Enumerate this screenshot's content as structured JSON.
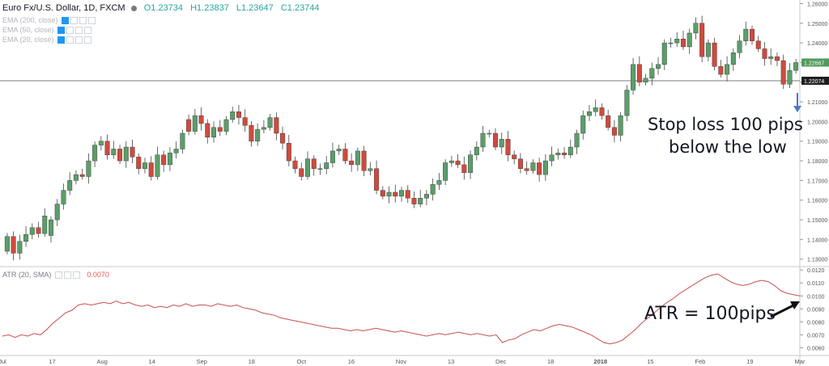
{
  "header": {
    "symbol": "Euro Fx/U.S. Dollar, 1D, FXCM",
    "open": "O1.23734",
    "high": "H1.23837",
    "low": "L1.23647",
    "close": "C1.23744"
  },
  "indicators": [
    "EMA (200, close)",
    "EMA (50, close)",
    "EMA (20, close)"
  ],
  "atr_header": {
    "label": "ATR (20, SMA)",
    "value": "0.0070"
  },
  "annotations": {
    "stop_line1": "Stop loss 100 pips",
    "stop_line2": "below the low",
    "atr_text": "ATR = 100pips"
  },
  "price_badges": {
    "last": "1.22667",
    "line": "1.22074"
  },
  "colors": {
    "up": "#5b9e6a",
    "down": "#d04a3c",
    "atr": "#c94f4f",
    "arrow": "#4a78c0",
    "hline": "#8a8a8a"
  },
  "chart_data": [
    {
      "type": "candlestick",
      "price_ticks": [
        "1.26000",
        "1.25000",
        "1.24000",
        "1.23000",
        "1.22000",
        "1.21000",
        "1.20000",
        "1.19000",
        "1.18000",
        "1.17000",
        "1.16000",
        "1.15000",
        "1.14000",
        "1.13000"
      ],
      "ylim": [
        1.127,
        1.261
      ],
      "horizontal_line": 1.22074,
      "x_labels": [
        "Jul",
        "17",
        "Aug",
        "14",
        "Sep",
        "18",
        "Oct",
        "16",
        "Nov",
        "13",
        "Dec",
        "18",
        "2018",
        "15",
        "Feb",
        "19",
        "Mar"
      ],
      "close": [
        1.1415,
        1.133,
        1.139,
        1.1425,
        1.146,
        1.143,
        1.152,
        1.15,
        1.158,
        1.165,
        1.17,
        1.173,
        1.172,
        1.18,
        1.188,
        1.19,
        1.183,
        1.186,
        1.18,
        1.187,
        1.182,
        1.176,
        1.179,
        1.172,
        1.183,
        1.178,
        1.184,
        1.186,
        1.194,
        1.195,
        1.203,
        1.199,
        1.192,
        1.197,
        1.195,
        1.201,
        1.205,
        1.202,
        1.198,
        1.19,
        1.196,
        1.197,
        1.202,
        1.194,
        1.189,
        1.18,
        1.176,
        1.172,
        1.181,
        1.176,
        1.176,
        1.179,
        1.185,
        1.186,
        1.18,
        1.178,
        1.185,
        1.175,
        1.176,
        1.165,
        1.162,
        1.164,
        1.162,
        1.165,
        1.161,
        1.158,
        1.161,
        1.163,
        1.168,
        1.17,
        1.179,
        1.18,
        1.178,
        1.174,
        1.183,
        1.187,
        1.194,
        1.194,
        1.187,
        1.191,
        1.183,
        1.181,
        1.176,
        1.175,
        1.179,
        1.173,
        1.18,
        1.183,
        1.184,
        1.183,
        1.187,
        1.194,
        1.203,
        1.205,
        1.207,
        1.203,
        1.197,
        1.193,
        1.203,
        1.216,
        1.229,
        1.22,
        1.222,
        1.227,
        1.229,
        1.24,
        1.24,
        1.242,
        1.238,
        1.245,
        1.25,
        1.233,
        1.24,
        1.228,
        1.224,
        1.229,
        1.235,
        1.241,
        1.247,
        1.241,
        1.237,
        1.232,
        1.233,
        1.231,
        1.219,
        1.226,
        1.23
      ],
      "open": [
        1.134,
        1.1415,
        1.133,
        1.139,
        1.1425,
        1.146,
        1.143,
        1.142,
        1.15,
        1.158,
        1.165,
        1.17,
        1.173,
        1.172,
        1.18,
        1.188,
        1.19,
        1.183,
        1.186,
        1.18,
        1.187,
        1.182,
        1.176,
        1.179,
        1.172,
        1.183,
        1.178,
        1.184,
        1.186,
        1.201,
        1.195,
        1.203,
        1.199,
        1.192,
        1.197,
        1.195,
        1.201,
        1.205,
        1.202,
        1.198,
        1.19,
        1.196,
        1.197,
        1.202,
        1.194,
        1.189,
        1.18,
        1.176,
        1.172,
        1.181,
        1.176,
        1.176,
        1.179,
        1.185,
        1.186,
        1.18,
        1.178,
        1.185,
        1.175,
        1.176,
        1.165,
        1.162,
        1.164,
        1.162,
        1.165,
        1.161,
        1.158,
        1.161,
        1.163,
        1.168,
        1.17,
        1.179,
        1.18,
        1.178,
        1.174,
        1.183,
        1.187,
        1.194,
        1.194,
        1.187,
        1.191,
        1.183,
        1.181,
        1.176,
        1.175,
        1.179,
        1.173,
        1.18,
        1.183,
        1.184,
        1.183,
        1.187,
        1.194,
        1.203,
        1.205,
        1.207,
        1.203,
        1.197,
        1.193,
        1.203,
        1.216,
        1.229,
        1.22,
        1.222,
        1.227,
        1.229,
        1.24,
        1.24,
        1.242,
        1.238,
        1.245,
        1.25,
        1.233,
        1.24,
        1.228,
        1.224,
        1.229,
        1.235,
        1.241,
        1.247,
        1.241,
        1.237,
        1.232,
        1.233,
        1.231,
        1.219,
        1.226
      ]
    },
    {
      "type": "line",
      "name": "ATR (20, SMA)",
      "y_ticks": [
        "0.0120",
        "0.0110",
        "0.0100",
        "0.0090",
        "0.0080",
        "0.0070",
        "0.0060"
      ],
      "ylim": [
        0.0054,
        0.0122
      ],
      "values": [
        0.0069,
        0.007,
        0.0068,
        0.007,
        0.0069,
        0.0071,
        0.007,
        0.0074,
        0.0079,
        0.0083,
        0.0087,
        0.0089,
        0.0093,
        0.0094,
        0.0093,
        0.0094,
        0.0095,
        0.0094,
        0.0096,
        0.0094,
        0.0095,
        0.0093,
        0.0092,
        0.0093,
        0.0091,
        0.0092,
        0.0091,
        0.0093,
        0.0092,
        0.0094,
        0.0092,
        0.0093,
        0.0093,
        0.0092,
        0.0094,
        0.0093,
        0.0092,
        0.0093,
        0.0091,
        0.009,
        0.0089,
        0.0087,
        0.0086,
        0.0085,
        0.0083,
        0.0082,
        0.0081,
        0.008,
        0.0079,
        0.0078,
        0.0077,
        0.0076,
        0.0075,
        0.0075,
        0.0074,
        0.0073,
        0.0074,
        0.0073,
        0.0074,
        0.0075,
        0.0074,
        0.0073,
        0.0072,
        0.0073,
        0.0072,
        0.0071,
        0.007,
        0.0069,
        0.007,
        0.0071,
        0.007,
        0.0071,
        0.0072,
        0.0071,
        0.007,
        0.0071,
        0.007,
        0.0069,
        0.007,
        0.0064,
        0.0066,
        0.0067,
        0.007,
        0.0072,
        0.0074,
        0.0073,
        0.0075,
        0.0077,
        0.0078,
        0.0077,
        0.0076,
        0.0074,
        0.0072,
        0.007,
        0.0067,
        0.0064,
        0.0063,
        0.0064,
        0.0066,
        0.007,
        0.0074,
        0.0079,
        0.0083,
        0.0087,
        0.0091,
        0.0095,
        0.0098,
        0.0102,
        0.0105,
        0.0108,
        0.0111,
        0.0114,
        0.0116,
        0.0117,
        0.0114,
        0.0111,
        0.0109,
        0.0108,
        0.0109,
        0.0111,
        0.0112,
        0.0111,
        0.0108,
        0.0104,
        0.0102,
        0.0101,
        0.01
      ]
    }
  ]
}
